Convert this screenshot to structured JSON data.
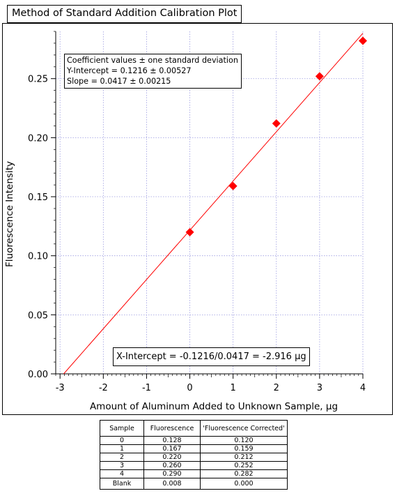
{
  "chart_data": {
    "type": "scatter",
    "title": "Method of Standard Addition Calibration Plot",
    "xlabel": "Amount of Aluminum Added to Unknown Sample, µg",
    "ylabel": "Fluorescence Intensity",
    "xlim": [
      -3.1,
      4.0
    ],
    "ylim": [
      0.0,
      0.29
    ],
    "xticks": [
      -3,
      -2,
      -1,
      0,
      1,
      2,
      3,
      4
    ],
    "xtick_labels": [
      "-3",
      "-2",
      "-1",
      "0",
      "1",
      "2",
      "3",
      "4"
    ],
    "yticks": [
      0.0,
      0.05,
      0.1,
      0.15,
      0.2,
      0.25
    ],
    "ytick_labels": [
      "0.00",
      "0.05",
      "0.10",
      "0.15",
      "0.20",
      "0.25"
    ],
    "grid": true,
    "marker": "diamond",
    "marker_color": "#ff0000",
    "line_color": "#ff0000",
    "points": {
      "x": [
        0,
        1,
        2,
        3,
        4
      ],
      "y": [
        0.12,
        0.159,
        0.212,
        0.252,
        0.282
      ]
    },
    "fit": {
      "intercept": 0.1216,
      "slope": 0.0417,
      "x_range": [
        -2.916,
        4.0
      ]
    },
    "annotations": {
      "coefficients": [
        "Coefficient values ± one standard deviation",
        "Y-Intercept = 0.1216 ± 0.00527",
        "Slope = 0.0417 ± 0.00215"
      ],
      "x_intercept": "X-Intercept = -0.1216/0.0417 = -2.916 µg"
    }
  },
  "table": {
    "headers": [
      "Sample",
      "Fluorescence",
      "'Fluorescence Corrected'"
    ],
    "rows": [
      [
        "0",
        "0.128",
        "0.120"
      ],
      [
        "1",
        "0.167",
        "0.159"
      ],
      [
        "2",
        "0.220",
        "0.212"
      ],
      [
        "3",
        "0.260",
        "0.252"
      ],
      [
        "4",
        "0.290",
        "0.282"
      ]
    ],
    "blank_row": [
      "Blank",
      "0.008",
      "0.000"
    ]
  }
}
